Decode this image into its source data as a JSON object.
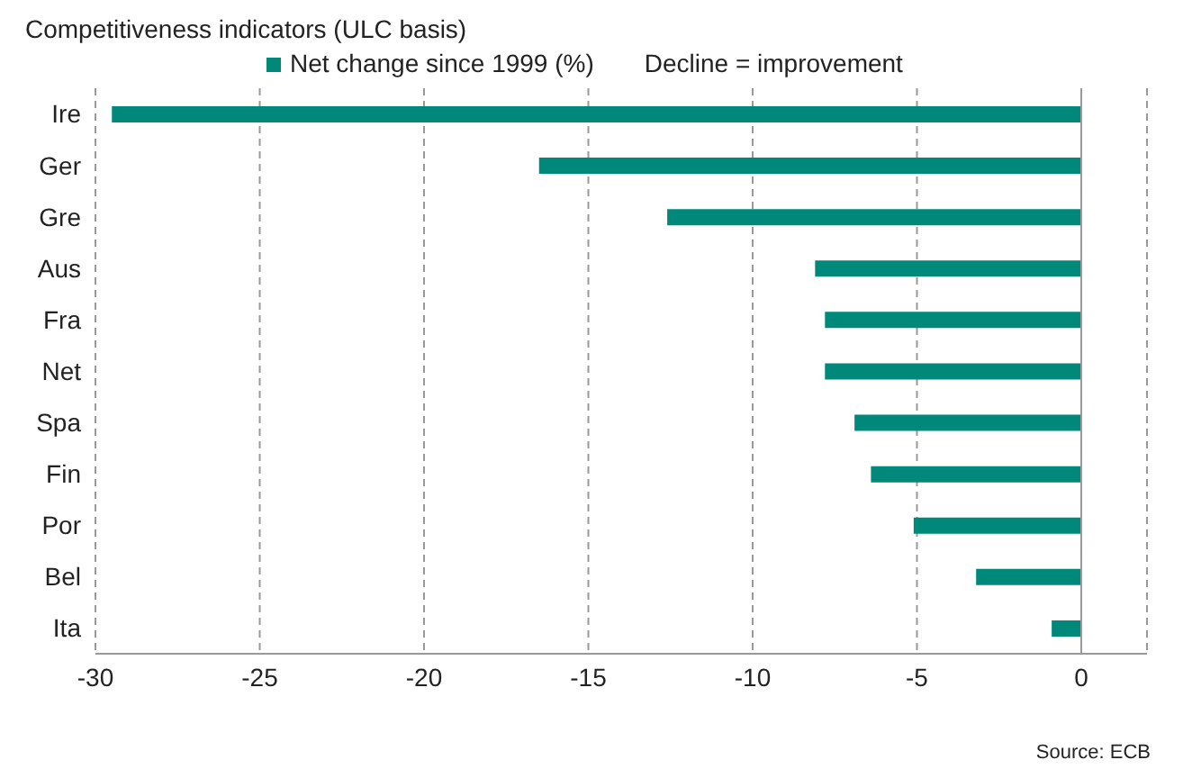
{
  "chart_data": {
    "type": "bar",
    "orientation": "horizontal",
    "title": "Competitiveness  indicators (ULC basis)",
    "categories": [
      "Ire",
      "Ger",
      "Gre",
      "Aus",
      "Fra",
      "Net",
      "Spa",
      "Fin",
      "Por",
      "Bel",
      "Ita"
    ],
    "series": [
      {
        "name": "Net change since 1999 (%)",
        "color": "#00897b",
        "values": [
          -29.5,
          -16.5,
          -12.6,
          -8.1,
          -7.8,
          -7.8,
          -6.9,
          -6.4,
          -5.1,
          -3.2,
          -0.9
        ]
      }
    ],
    "xlim": [
      -30,
      2
    ],
    "xticks": [
      -30,
      -25,
      -20,
      -15,
      -10,
      -5,
      0
    ],
    "grid": "x",
    "legend": "top",
    "annotations": [
      "Decline = improvement",
      "Source: ECB"
    ]
  }
}
